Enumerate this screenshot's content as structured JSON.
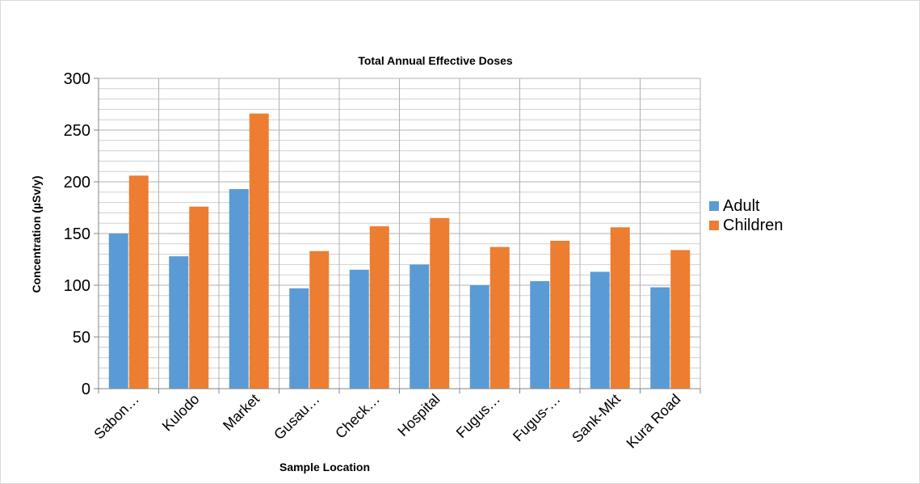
{
  "chart_data": {
    "type": "bar",
    "title": "Total Annual Effective Doses",
    "xlabel": "Sample Location",
    "ylabel": "Concentration (µSv/y)",
    "ylim": [
      0,
      300
    ],
    "yticks": [
      0,
      50,
      100,
      150,
      200,
      250,
      300
    ],
    "grid": true,
    "legend_position": "right",
    "categories": [
      "Sabon…",
      "Kulodo",
      "Market",
      "Gusau…",
      "Check…",
      "Hospital",
      "Fugus…",
      "Fugus-…",
      "Sank-Mkt",
      "Kura Road"
    ],
    "series": [
      {
        "name": "Adult",
        "color": "#5b9bd5",
        "values": [
          150,
          128,
          193,
          97,
          115,
          120,
          100,
          104,
          113,
          98
        ]
      },
      {
        "name": "Children",
        "color": "#ed7d31",
        "values": [
          206,
          176,
          266,
          133,
          157,
          165,
          137,
          143,
          156,
          134
        ]
      }
    ]
  }
}
